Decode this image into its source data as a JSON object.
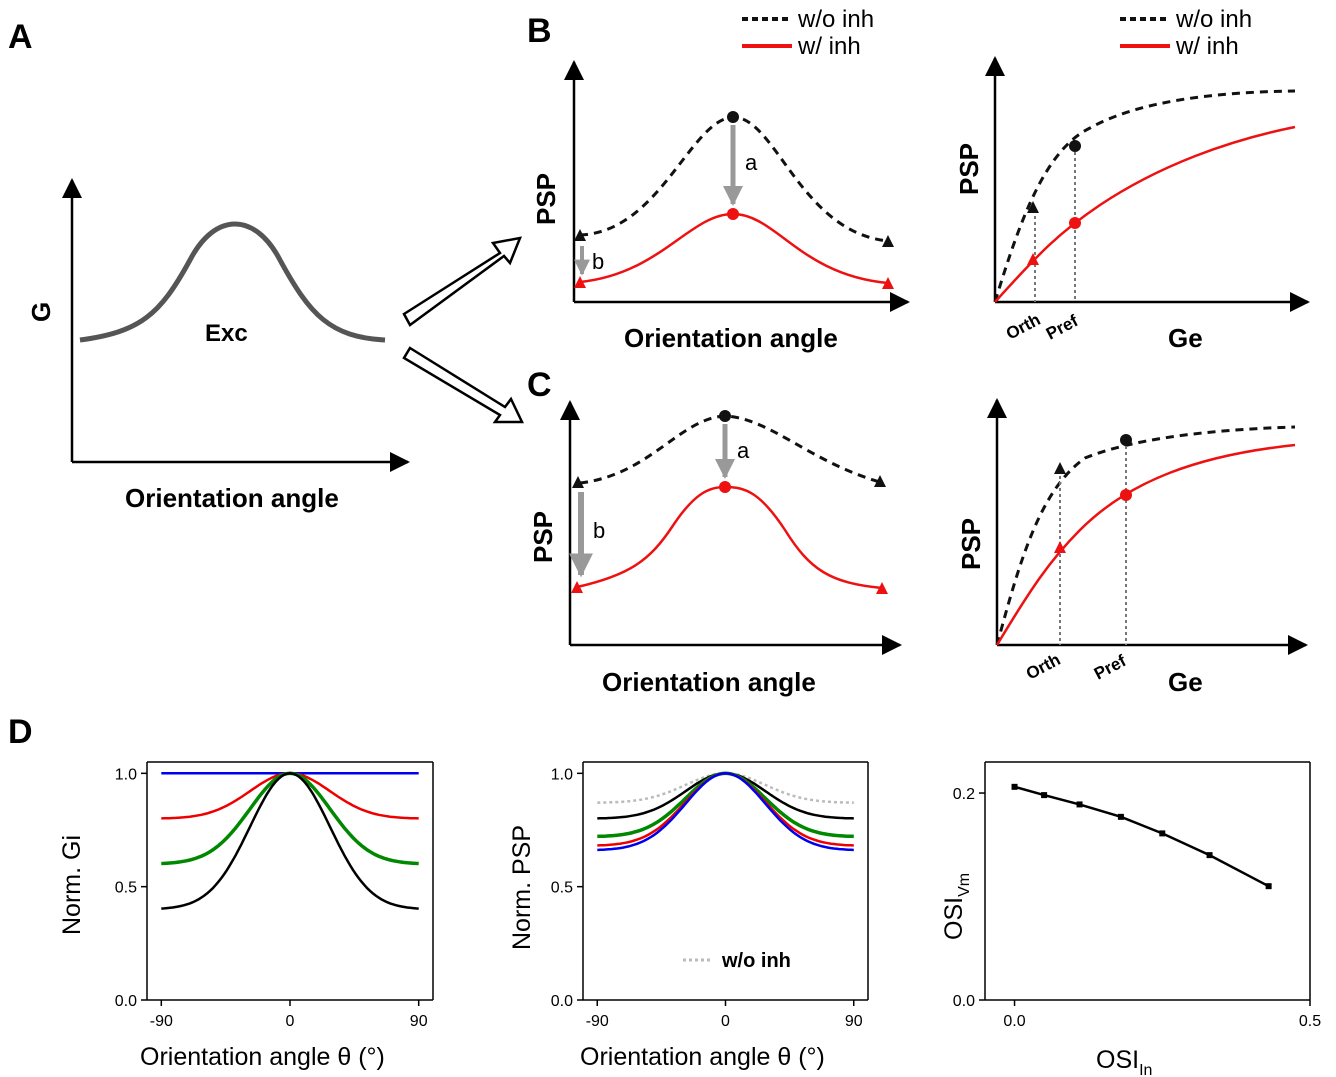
{
  "panel_labels": {
    "a": "A",
    "b": "B",
    "c": "C",
    "d": "D"
  },
  "legend": {
    "without": "w/o inh",
    "with": "w/ inh"
  },
  "colors": {
    "exc": "#555555",
    "with_inh": "#ee1111",
    "without_inh": "#111111",
    "arrow_gray": "#999999",
    "blue": "#0000ee",
    "red": "#ee0000",
    "green": "#008800",
    "black": "#000000",
    "dotted_gray": "#bbbbbb"
  },
  "schematic": {
    "a_ylabel": "G",
    "a_curve_label": "Exc",
    "xlabel": "Orientation angle",
    "psp_ylabel": "PSP",
    "ge_xlabel": "Ge",
    "orth": "Orth",
    "pref": "Pref",
    "arrow_a": "a",
    "arrow_b": "b"
  },
  "chart_data": [
    {
      "type": "line",
      "id": "D1",
      "xlabel": "Orientation angle θ (°)",
      "ylabel": "Norm. Gi",
      "xlim": [
        -100,
        100
      ],
      "ylim": [
        0,
        1.05
      ],
      "xticks": [
        "-90",
        "0",
        "90"
      ],
      "xtick_values": [
        -90,
        0,
        90
      ],
      "yticks": [
        "0.0",
        "0.5",
        "1.0"
      ],
      "ytick_values": [
        0,
        0.5,
        1.0
      ],
      "series": [
        {
          "color": "blue",
          "baseline": 1.0,
          "x": [
            -90,
            -60,
            -30,
            0,
            30,
            60,
            90
          ],
          "values": [
            1.0,
            1.0,
            1.0,
            1.0,
            1.0,
            1.0,
            1.0
          ]
        },
        {
          "color": "red",
          "baseline": 0.8,
          "x": [
            -90,
            -60,
            -30,
            0,
            30,
            60,
            90
          ],
          "values": [
            0.8,
            0.81,
            0.9,
            1.0,
            0.9,
            0.81,
            0.8
          ]
        },
        {
          "color": "green",
          "baseline": 0.6,
          "x": [
            -90,
            -60,
            -30,
            0,
            30,
            60,
            90
          ],
          "values": [
            0.6,
            0.62,
            0.8,
            1.0,
            0.8,
            0.62,
            0.6
          ]
        },
        {
          "color": "black",
          "baseline": 0.4,
          "x": [
            -90,
            -60,
            -30,
            0,
            30,
            60,
            90
          ],
          "values": [
            0.4,
            0.43,
            0.7,
            1.0,
            0.7,
            0.43,
            0.4
          ]
        }
      ]
    },
    {
      "type": "line",
      "id": "D2",
      "xlabel": "Orientation angle θ (°)",
      "ylabel": "Norm. PSP",
      "legend": "w/o inh",
      "xlim": [
        -100,
        100
      ],
      "ylim": [
        0,
        1.05
      ],
      "xticks": [
        "-90",
        "0",
        "90"
      ],
      "xtick_values": [
        -90,
        0,
        90
      ],
      "yticks": [
        "0.0",
        "0.5",
        "1.0"
      ],
      "ytick_values": [
        0,
        0.5,
        1.0
      ],
      "series": [
        {
          "color": "dotted_gray",
          "dashed": true,
          "baseline": 0.87,
          "x": [
            -90,
            -60,
            -30,
            0,
            30,
            60,
            90
          ],
          "values": [
            0.87,
            0.88,
            0.94,
            1.0,
            0.94,
            0.88,
            0.87
          ]
        },
        {
          "color": "black",
          "baseline": 0.8,
          "x": [
            -90,
            -60,
            -30,
            0,
            30,
            60,
            90
          ],
          "values": [
            0.8,
            0.81,
            0.9,
            1.0,
            0.9,
            0.81,
            0.8
          ]
        },
        {
          "color": "green",
          "baseline": 0.72,
          "x": [
            -90,
            -60,
            -30,
            0,
            30,
            60,
            90
          ],
          "values": [
            0.72,
            0.74,
            0.86,
            1.0,
            0.86,
            0.74,
            0.72
          ]
        },
        {
          "color": "red",
          "baseline": 0.68,
          "x": [
            -90,
            -60,
            -30,
            0,
            30,
            60,
            90
          ],
          "values": [
            0.68,
            0.7,
            0.84,
            1.0,
            0.84,
            0.7,
            0.68
          ]
        },
        {
          "color": "blue",
          "baseline": 0.66,
          "x": [
            -90,
            -60,
            -30,
            0,
            30,
            60,
            90
          ],
          "values": [
            0.66,
            0.68,
            0.83,
            1.0,
            0.83,
            0.68,
            0.66
          ]
        }
      ]
    },
    {
      "type": "line",
      "id": "D3",
      "xlabel": "OSI_In",
      "ylabel": "OSI_Vm",
      "xlim": [
        -0.05,
        0.5
      ],
      "ylim": [
        0,
        0.23
      ],
      "xticks": [
        "0.0",
        "0.5"
      ],
      "xtick_values": [
        0,
        0.5
      ],
      "yticks": [
        "0.0",
        "0.2"
      ],
      "ytick_values": [
        0,
        0.2
      ],
      "series": [
        {
          "color": "black",
          "markers": true,
          "x": [
            0.0,
            0.05,
            0.11,
            0.18,
            0.25,
            0.33,
            0.43
          ],
          "values": [
            0.206,
            0.198,
            0.189,
            0.177,
            0.161,
            0.14,
            0.11
          ]
        }
      ]
    }
  ]
}
